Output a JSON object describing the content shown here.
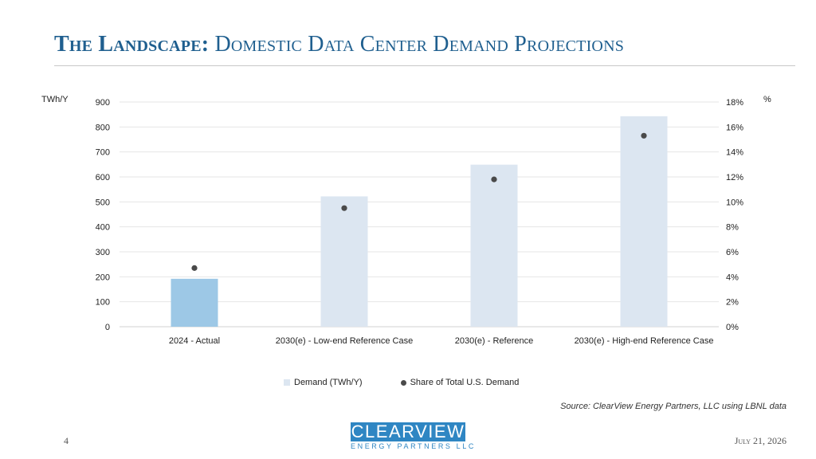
{
  "slide": {
    "title_bold": "The Landscape:",
    "title_rest": "Domestic Data Center Demand Projections",
    "page_number": "4",
    "date": "July 21, 2026",
    "source": "Source: ClearView Energy Partners, LLC using LBNL data",
    "logo_main": "CLEARVIEW",
    "logo_sub": "ENERGY PARTNERS LLC"
  },
  "chart_data": {
    "type": "bar",
    "categories": [
      "2024 - Actual",
      "2030(e) - Low-end Reference Case",
      "2030(e) - Reference",
      "2030(e) - High-end Reference Case"
    ],
    "series": [
      {
        "name": "Demand (TWh/Y)",
        "type": "bar",
        "axis": "left",
        "values": [
          192,
          522,
          649,
          843
        ],
        "colors": [
          "#9dc8e6",
          "#dce6f1",
          "#dce6f1",
          "#dce6f1"
        ]
      },
      {
        "name": "Share of Total U.S. Demand",
        "type": "scatter",
        "axis": "right",
        "values": [
          4.7,
          9.5,
          11.8,
          15.3
        ],
        "color": "#4a4a4a"
      }
    ],
    "left_axis": {
      "unit": "TWh/Y",
      "ylim": [
        0,
        900
      ],
      "ticks": [
        "0",
        "100",
        "200",
        "300",
        "400",
        "500",
        "600",
        "700",
        "800",
        "900"
      ]
    },
    "right_axis": {
      "unit": "%",
      "ylim": [
        0,
        18
      ],
      "ticks": [
        "0%",
        "2%",
        "4%",
        "6%",
        "8%",
        "10%",
        "12%",
        "14%",
        "16%",
        "18%"
      ]
    },
    "grid": true,
    "legend_position": "bottom"
  }
}
